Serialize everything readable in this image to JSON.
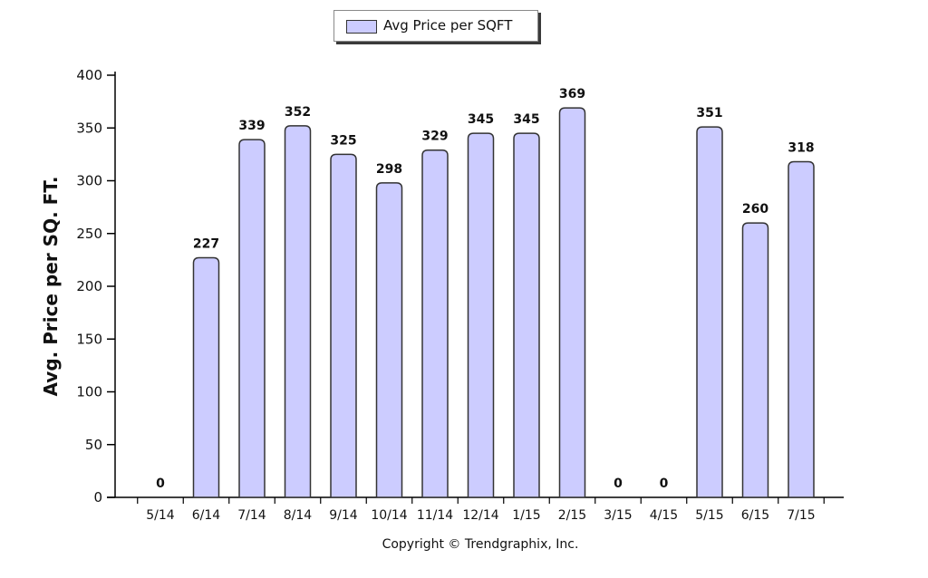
{
  "chart_data": {
    "type": "bar",
    "categories": [
      "5/14",
      "6/14",
      "7/14",
      "8/14",
      "9/14",
      "10/14",
      "11/14",
      "12/14",
      "1/15",
      "2/15",
      "3/15",
      "4/15",
      "5/15",
      "6/15",
      "7/15"
    ],
    "series": [
      {
        "name": "Avg Price per SQFT",
        "values": [
          0,
          227,
          339,
          352,
          325,
          298,
          329,
          345,
          345,
          369,
          0,
          0,
          351,
          260,
          318
        ],
        "data_labels": [
          "0",
          "227",
          "339",
          "352",
          "325",
          "298",
          "329",
          "345",
          "345",
          "369",
          "0",
          "0",
          "351",
          "260",
          "318"
        ]
      }
    ],
    "title": "",
    "xlabel": "",
    "ylabel": "Avg. Price per SQ. FT.",
    "ylim": [
      0,
      400
    ],
    "yticks": [
      0,
      50,
      100,
      150,
      200,
      250,
      300,
      350,
      400
    ],
    "ytick_labels": [
      "0",
      "50",
      "100",
      "150",
      "200",
      "250",
      "300",
      "350",
      "400"
    ],
    "grid": false,
    "legend_position": "top-center",
    "bar_color": "#ccccff",
    "bar_edge_color": "#333333"
  },
  "footer": {
    "copyright": "Copyright © Trendgraphix, Inc."
  }
}
